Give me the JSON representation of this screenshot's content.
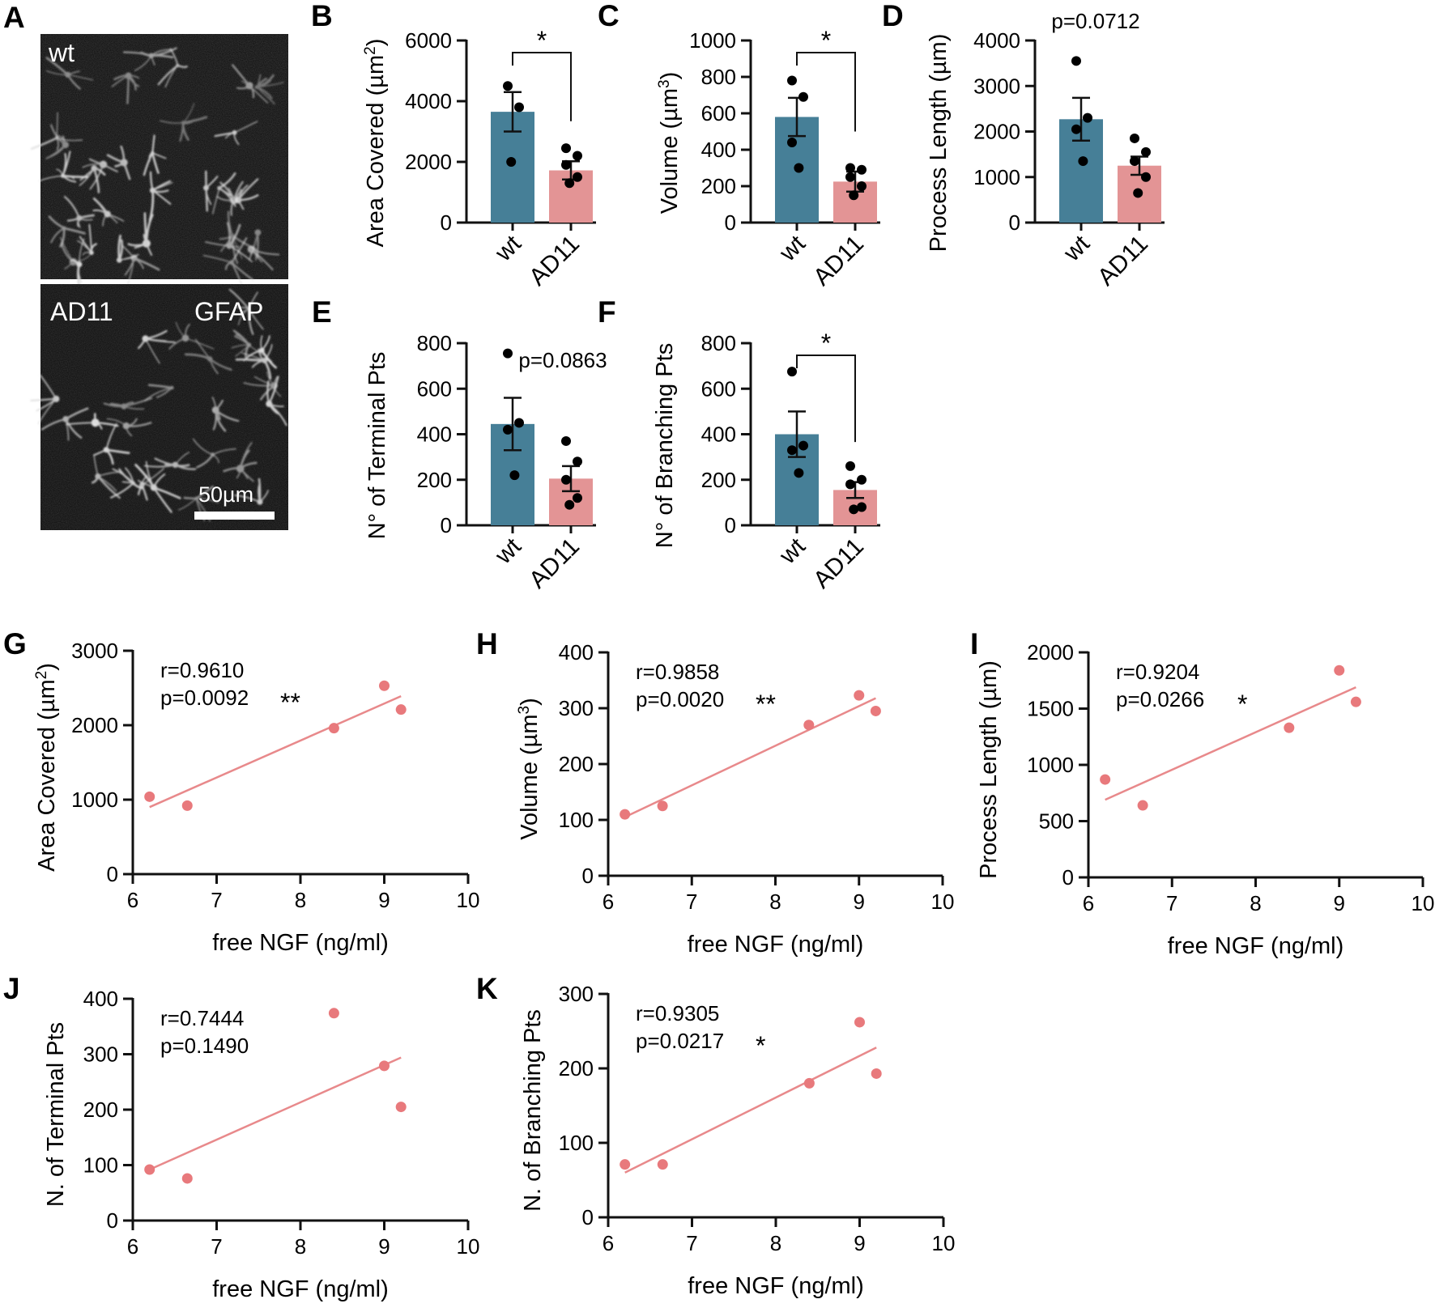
{
  "figure": {
    "panelA": {
      "letter": "A",
      "top_label": "wt",
      "bottom_label": "AD11",
      "stain_label": "GFAP",
      "scale_bar_label": "50µm"
    }
  },
  "colors": {
    "wt": "#467f97",
    "ad11": "#e39495",
    "scatter": "#e8797c",
    "fitline": "#e8898b",
    "axis": "#111111"
  },
  "chart_data": [
    {
      "panel": "B",
      "type": "bar",
      "ylabel": "Area Covered (µm",
      "ylabel_sup": "2",
      "ylabel_tail": ")",
      "categories": [
        "wt",
        "AD11"
      ],
      "means": [
        3650,
        1720
      ],
      "sems": [
        650,
        300
      ],
      "points": [
        [
          4500,
          3800,
          2000
        ],
        [
          2450,
          2200,
          1900,
          1500,
          1300
        ]
      ],
      "ylim": [
        0,
        6000
      ],
      "yticks": [
        0,
        2000,
        4000,
        6000
      ],
      "ytick_labels": [
        "0",
        "2000",
        "4000",
        "6000"
      ],
      "significance": "*",
      "pvalue": ""
    },
    {
      "panel": "C",
      "type": "bar",
      "ylabel": "Volume (µm",
      "ylabel_sup": "3",
      "ylabel_tail": ")",
      "categories": [
        "wt",
        "AD11"
      ],
      "means": [
        580,
        225
      ],
      "sems": [
        105,
        55
      ],
      "points": [
        [
          780,
          690,
          440,
          300
        ],
        [
          300,
          290,
          250,
          200,
          150
        ]
      ],
      "ylim": [
        0,
        1000
      ],
      "yticks": [
        0,
        200,
        400,
        600,
        800,
        1000
      ],
      "ytick_labels": [
        "0",
        "200",
        "400",
        "600",
        "800",
        "1000"
      ],
      "significance": "*",
      "pvalue": ""
    },
    {
      "panel": "D",
      "type": "bar",
      "ylabel": "Process Length (µm)",
      "ylabel_sup": "",
      "ylabel_tail": "",
      "categories": [
        "wt",
        "AD11"
      ],
      "means": [
        2270,
        1250
      ],
      "sems": [
        470,
        200
      ],
      "points": [
        [
          3550,
          2300,
          2050,
          1350
        ],
        [
          1850,
          1550,
          1350,
          1000,
          650
        ]
      ],
      "ylim": [
        0,
        4000
      ],
      "yticks": [
        0,
        1000,
        2000,
        3000,
        4000
      ],
      "ytick_labels": [
        "0",
        "1000",
        "2000",
        "3000",
        "4000"
      ],
      "significance": "",
      "pvalue": "p=0.0712"
    },
    {
      "panel": "E",
      "type": "bar",
      "ylabel": "N° of Terminal Pts",
      "ylabel_sup": "",
      "ylabel_tail": "",
      "categories": [
        "wt",
        "AD11"
      ],
      "means": [
        445,
        205
      ],
      "sems": [
        115,
        55
      ],
      "points": [
        [
          755,
          450,
          420,
          220
        ],
        [
          370,
          280,
          200,
          120,
          90
        ]
      ],
      "ylim": [
        0,
        800
      ],
      "yticks": [
        0,
        200,
        400,
        600,
        800
      ],
      "ytick_labels": [
        "0",
        "200",
        "400",
        "600",
        "800"
      ],
      "significance": "",
      "pvalue": "p=0.0863"
    },
    {
      "panel": "F",
      "type": "bar",
      "ylabel": "N° of Branching Pts",
      "ylabel_sup": "",
      "ylabel_tail": ")",
      "categories": [
        "wt",
        "AD11"
      ],
      "means": [
        400,
        155
      ],
      "sems": [
        100,
        35
      ],
      "points": [
        [
          675,
          350,
          330,
          230
        ],
        [
          260,
          200,
          180,
          80,
          70
        ]
      ],
      "ylim": [
        0,
        800
      ],
      "yticks": [
        0,
        200,
        400,
        600,
        800
      ],
      "ytick_labels": [
        "0",
        "200",
        "400",
        "600",
        "800"
      ],
      "significance": "*",
      "pvalue": ""
    },
    {
      "panel": "G",
      "type": "scatter",
      "ylabel": "Area Covered (µm",
      "ylabel_sup": "2",
      "ylabel_tail": ")",
      "xlabel": "free NGF (ng/ml)",
      "x": [
        6.2,
        6.65,
        8.4,
        9.0,
        9.2
      ],
      "y": [
        1040,
        920,
        1960,
        2530,
        2210
      ],
      "fit": [
        [
          6.2,
          900
        ],
        [
          9.2,
          2390
        ]
      ],
      "xlim": [
        6,
        10
      ],
      "ylim": [
        0,
        3000
      ],
      "xticks": [
        6,
        7,
        8,
        9,
        10
      ],
      "xtick_labels": [
        "6",
        "7",
        "8",
        "9",
        "10"
      ],
      "yticks": [
        0,
        1000,
        2000,
        3000
      ],
      "ytick_labels": [
        "0",
        "1000",
        "2000",
        "3000"
      ],
      "r_text": "r=0.9610",
      "p_text": "p=0.0092",
      "stars": "**"
    },
    {
      "panel": "H",
      "type": "scatter",
      "ylabel": "Volume (µm",
      "ylabel_sup": "3",
      "ylabel_tail": ")",
      "xlabel": "free NGF (ng/ml)",
      "x": [
        6.2,
        6.65,
        8.4,
        9.0,
        9.2
      ],
      "y": [
        110,
        125,
        270,
        323,
        295
      ],
      "fit": [
        [
          6.2,
          105
        ],
        [
          9.2,
          318
        ]
      ],
      "xlim": [
        6,
        10
      ],
      "ylim": [
        0,
        400
      ],
      "xticks": [
        6,
        7,
        8,
        9,
        10
      ],
      "xtick_labels": [
        "6",
        "7",
        "8",
        "9",
        "10"
      ],
      "yticks": [
        0,
        100,
        200,
        300,
        400
      ],
      "ytick_labels": [
        "0",
        "100",
        "200",
        "300",
        "400"
      ],
      "r_text": "r=0.9858",
      "p_text": "p=0.0020",
      "stars": "**"
    },
    {
      "panel": "I",
      "type": "scatter",
      "ylabel": "Process Length (µm)",
      "ylabel_sup": "",
      "ylabel_tail": "",
      "xlabel": "free NGF (ng/ml)",
      "x": [
        6.2,
        6.65,
        8.4,
        9.0,
        9.2
      ],
      "y": [
        870,
        640,
        1330,
        1840,
        1560
      ],
      "fit": [
        [
          6.2,
          690
        ],
        [
          9.2,
          1690
        ]
      ],
      "xlim": [
        6,
        10
      ],
      "ylim": [
        0,
        2000
      ],
      "xticks": [
        6,
        7,
        8,
        9,
        10
      ],
      "xtick_labels": [
        "6",
        "7",
        "8",
        "9",
        "10"
      ],
      "yticks": [
        0,
        500,
        1000,
        1500,
        2000
      ],
      "ytick_labels": [
        "0",
        "500",
        "1000",
        "1500",
        "2000"
      ],
      "r_text": "r=0.9204",
      "p_text": "p=0.0266",
      "stars": "*"
    },
    {
      "panel": "J",
      "type": "scatter",
      "ylabel": "N. of Terminal Pts",
      "ylabel_sup": "",
      "ylabel_tail": "",
      "xlabel": "free NGF (ng/ml)",
      "x": [
        6.2,
        6.65,
        8.4,
        9.0,
        9.2
      ],
      "y": [
        92,
        76,
        374,
        279,
        205
      ],
      "fit": [
        [
          6.2,
          92
        ],
        [
          9.2,
          294
        ]
      ],
      "xlim": [
        6,
        10
      ],
      "ylim": [
        0,
        400
      ],
      "xticks": [
        6,
        7,
        8,
        9,
        10
      ],
      "xtick_labels": [
        "6",
        "7",
        "8",
        "9",
        "10"
      ],
      "yticks": [
        0,
        100,
        200,
        300,
        400
      ],
      "ytick_labels": [
        "0",
        "100",
        "200",
        "300",
        "400"
      ],
      "r_text": "r=0.7444",
      "p_text": "p=0.1490",
      "stars": ""
    },
    {
      "panel": "K",
      "type": "scatter",
      "ylabel": "N. of Branching Pts",
      "ylabel_sup": "",
      "ylabel_tail": "",
      "xlabel": "free NGF (ng/ml)",
      "x": [
        6.2,
        6.65,
        8.4,
        9.0,
        9.2
      ],
      "y": [
        71,
        71,
        180,
        262,
        193
      ],
      "fit": [
        [
          6.2,
          60
        ],
        [
          9.2,
          228
        ]
      ],
      "xlim": [
        6,
        10
      ],
      "ylim": [
        0,
        300
      ],
      "xticks": [
        6,
        7,
        8,
        9,
        10
      ],
      "xtick_labels": [
        "6",
        "7",
        "8",
        "9",
        "10"
      ],
      "yticks": [
        0,
        100,
        200,
        300
      ],
      "ytick_labels": [
        "0",
        "100",
        "200",
        "300"
      ],
      "r_text": "r=0.9305",
      "p_text": "p=0.0217",
      "stars": "*"
    }
  ]
}
